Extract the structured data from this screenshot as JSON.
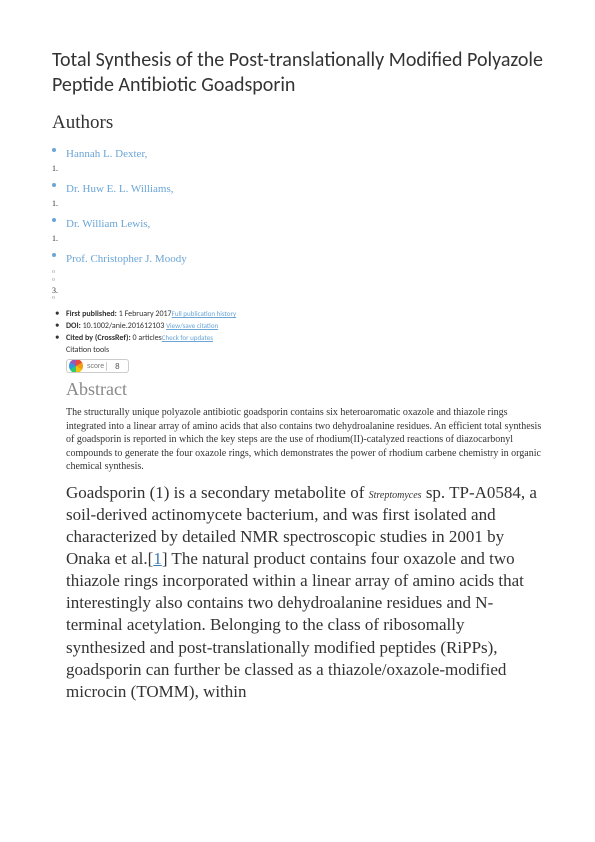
{
  "title": "Total Synthesis of the Post-translationally Modified Polyazole Peptide Antibiotic Goadsporin",
  "authors_heading": "Authors",
  "authors": [
    {
      "name": "Hannah L. Dexter,",
      "subs": [
        "1."
      ]
    },
    {
      "name": "Dr. Huw E. L. Williams,",
      "subs": [
        "1."
      ]
    },
    {
      "name": "Dr. William Lewis,",
      "subs": [
        "1."
      ]
    },
    {
      "name": "Prof. Christopher J. Moody",
      "subs": [
        "o",
        "o",
        "3.",
        "o"
      ]
    }
  ],
  "meta": {
    "first_published_label": "First published:",
    "first_published_value": " 1 February 2017",
    "pub_history_link": "Full publication history",
    "doi_label": "DOI:",
    "doi_value": " 10.1002/anie.201612103 ",
    "doi_link": "View/save citation",
    "cited_label": "Cited by (CrossRef):",
    "cited_value": " 0 articles",
    "cited_link": "Check for updates",
    "citation_tools": "Citation tools"
  },
  "altmetric": {
    "score": "8",
    "text": "score"
  },
  "abstract_heading": "Abstract",
  "abstract_text": "The structurally unique polyazole antibiotic goadsporin contains six heteroaromatic oxazole and thiazole rings integrated into a linear array of amino acids that also contains two dehydroalanine residues. An efficient total synthesis of goadsporin is reported in which the key steps are the use of rhodium(II)-catalyzed reactions of diazocarbonyl compounds to generate the four oxazole rings, which demonstrates the power of rhodium carbene chemistry in organic chemical synthesis.",
  "body": {
    "part1": "Goadsporin (1) is a secondary metabolite of ",
    "italic1": "Streptomyces",
    "part2": " sp. TP-A0584, a soil-derived actinomycete bacterium, and was first isolated and characterized by detailed NMR spectroscopic studies in 2001 by Onaka et al.[",
    "ref1": "1",
    "part3": "] The natural product contains four oxazole and two thiazole rings incorporated within a linear array of amino acids that interestingly also contains two dehydroalanine residues and N-terminal acetylation. Belonging to the class of ribosomally synthesized and post-translationally modified peptides (RiPPs), goadsporin can further be classed as a thiazole/oxazole-modified microcin (TOMM), within"
  },
  "colors": {
    "author_link": "#6aa5d6",
    "meta_link": "#6aa5d6",
    "ref_link": "#3a7ab5",
    "heading_gray": "#888888"
  }
}
